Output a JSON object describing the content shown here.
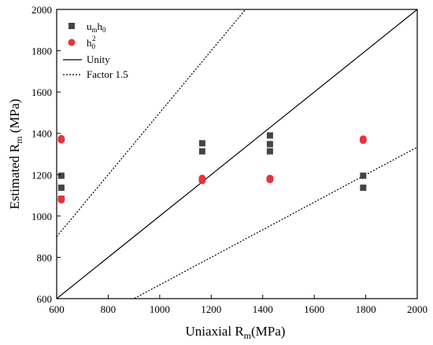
{
  "chart_data": {
    "type": "scatter",
    "xlabel": {
      "main": "Uniaxial R",
      "sub": "m",
      "tail": "(MPa)"
    },
    "ylabel": {
      "main": "Estimated R",
      "sub": "m",
      "tail": " (MPa)"
    },
    "xlim": [
      600,
      2000
    ],
    "ylim": [
      600,
      2000
    ],
    "xticks": [
      600,
      800,
      1000,
      1200,
      1400,
      1600,
      1800,
      2000
    ],
    "yticks": [
      600,
      800,
      1000,
      1200,
      1400,
      1600,
      1800,
      2000
    ],
    "grid": false,
    "legend_position": "top-left",
    "series": [
      {
        "name": "umh0",
        "legend_parts": {
          "a": "u",
          "a_sub": "m",
          "b": "h",
          "b_sub": "0"
        },
        "marker": "square",
        "color": "#444444",
        "points": [
          [
            618,
            1195
          ],
          [
            618,
            1137
          ],
          [
            618,
            1083
          ],
          [
            1165,
            1352
          ],
          [
            1165,
            1313
          ],
          [
            1428,
            1390
          ],
          [
            1428,
            1348
          ],
          [
            1428,
            1313
          ],
          [
            1790,
            1195
          ],
          [
            1790,
            1137
          ]
        ]
      },
      {
        "name": "h0^2",
        "legend_parts": {
          "a": "h",
          "a_sub": "0",
          "a_sup": "2"
        },
        "marker": "circle",
        "color": "#e8323c",
        "points": [
          [
            618,
            1375
          ],
          [
            618,
            1368
          ],
          [
            618,
            1083
          ],
          [
            618,
            1078
          ],
          [
            1165,
            1183
          ],
          [
            1165,
            1176
          ],
          [
            1165,
            1171
          ],
          [
            1428,
            1183
          ],
          [
            1428,
            1176
          ],
          [
            1790,
            1373
          ],
          [
            1790,
            1366
          ]
        ]
      }
    ],
    "lines": [
      {
        "name": "Unity",
        "style": "solid",
        "factor": 1.0
      },
      {
        "name": "Factor 1.5",
        "style": "dotted",
        "factor": 1.5
      }
    ]
  }
}
